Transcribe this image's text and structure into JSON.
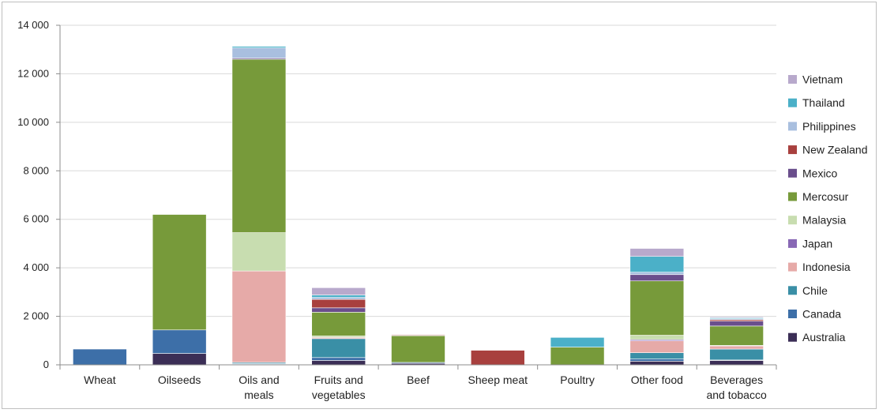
{
  "chart_data": {
    "type": "bar",
    "stacked": true,
    "title": "",
    "xlabel": "",
    "ylabel": "",
    "ylim": [
      0,
      14000
    ],
    "y_ticks": [
      0,
      2000,
      4000,
      6000,
      8000,
      10000,
      12000,
      14000
    ],
    "y_tick_labels": [
      "0",
      "2 000",
      "4 000",
      "6 000",
      "8 000",
      "10 000",
      "12 000",
      "14 000"
    ],
    "grid": "horizontal",
    "legend_position": "right",
    "categories": [
      [
        "Wheat"
      ],
      [
        "Oilseeds"
      ],
      [
        "Oils and",
        "meals"
      ],
      [
        "Fruits and",
        "vegetables"
      ],
      [
        "Beef"
      ],
      [
        "Sheep meat"
      ],
      [
        "Poultry"
      ],
      [
        "Other food"
      ],
      [
        "Beverages",
        "and tobacco"
      ]
    ],
    "series": [
      {
        "name": "Australia",
        "color": "#3b2e56",
        "values": [
          0,
          470,
          20,
          180,
          60,
          0,
          0,
          150,
          180
        ]
      },
      {
        "name": "Canada",
        "color": "#3d6fa8",
        "values": [
          650,
          970,
          30,
          120,
          40,
          0,
          0,
          90,
          20
        ]
      },
      {
        "name": "Chile",
        "color": "#3a8fa6",
        "values": [
          0,
          0,
          50,
          780,
          0,
          0,
          0,
          260,
          450
        ]
      },
      {
        "name": "Indonesia",
        "color": "#e6aaa8",
        "values": [
          0,
          0,
          3770,
          50,
          0,
          0,
          0,
          490,
          130
        ]
      },
      {
        "name": "Japan",
        "color": "#8868b5",
        "values": [
          0,
          0,
          0,
          0,
          0,
          0,
          0,
          50,
          0
        ]
      },
      {
        "name": "Malaysia",
        "color": "#c8ddb0",
        "values": [
          0,
          0,
          1580,
          60,
          0,
          0,
          0,
          180,
          20
        ]
      },
      {
        "name": "Mercosur",
        "color": "#779a3a",
        "values": [
          0,
          4760,
          7150,
          980,
          1100,
          0,
          730,
          2240,
          800
        ]
      },
      {
        "name": "Mexico",
        "color": "#6a4e8c",
        "values": [
          0,
          0,
          50,
          180,
          20,
          0,
          0,
          260,
          200
        ]
      },
      {
        "name": "New Zealand",
        "color": "#a8403e",
        "values": [
          0,
          0,
          0,
          350,
          30,
          600,
          0,
          0,
          60
        ]
      },
      {
        "name": "Philippines",
        "color": "#a9bfdf",
        "values": [
          0,
          0,
          420,
          80,
          0,
          0,
          0,
          100,
          40
        ]
      },
      {
        "name": "Thailand",
        "color": "#4bb0c8",
        "values": [
          0,
          0,
          60,
          100,
          0,
          0,
          400,
          650,
          40
        ]
      },
      {
        "name": "Vietnam",
        "color": "#b8a9cc",
        "values": [
          0,
          0,
          0,
          300,
          0,
          0,
          0,
          330,
          40
        ]
      }
    ]
  }
}
